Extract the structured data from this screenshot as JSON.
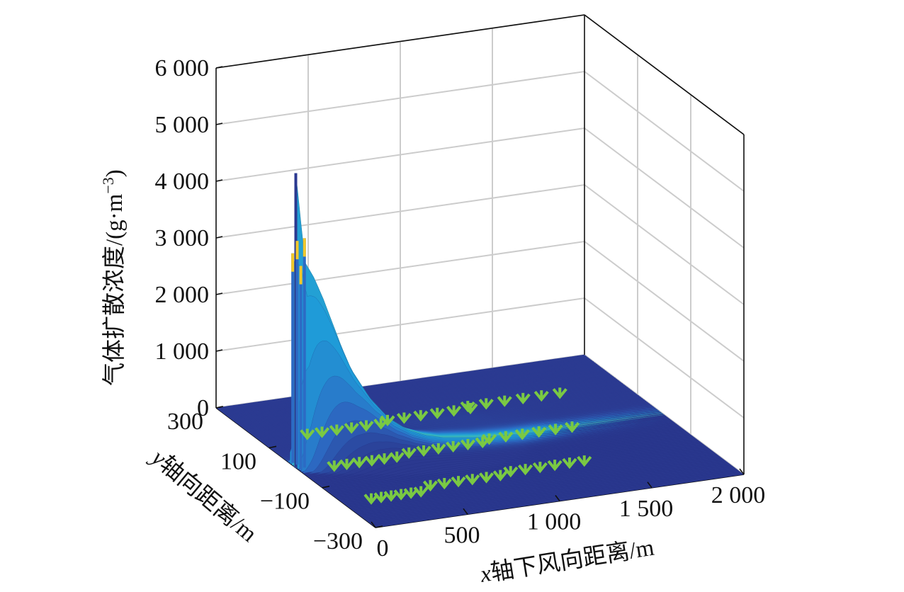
{
  "chart_data": {
    "type": "surface3d",
    "zlabel": "气体扩散浓度/(g·m",
    "zlabel_sup": "−3",
    "zlabel_tail": ")",
    "xlabel_var": "x",
    "xlabel_text": "轴下风向距离/m",
    "ylabel_var": "y",
    "ylabel_text": "轴向距离/m",
    "x_ticks": [
      0,
      500,
      1000,
      1500,
      2000
    ],
    "x_tick_labels": [
      "0",
      "500",
      "1 000",
      "1 500",
      "2 000"
    ],
    "y_ticks": [
      -300,
      -100,
      100,
      300
    ],
    "y_tick_labels": [
      "−300",
      "−100",
      "100",
      "300"
    ],
    "z_ticks": [
      0,
      1000,
      2000,
      3000,
      4000,
      5000,
      6000
    ],
    "z_tick_labels": [
      "0",
      "1 000",
      "2 000",
      "3 000",
      "4 000",
      "5 000",
      "6 000"
    ],
    "xlim": [
      0,
      2000
    ],
    "ylim": [
      -300,
      300
    ],
    "zlim": [
      0,
      6000
    ],
    "grid": true,
    "colormap": "parula",
    "peak": {
      "x": 0,
      "y": 0,
      "value": 5200
    },
    "ridge_profile": {
      "x": [
        0,
        50,
        100,
        150,
        200,
        250,
        300,
        400,
        500,
        600,
        700,
        800,
        1000,
        1200,
        1500,
        2000
      ],
      "value": [
        5200,
        3600,
        3300,
        2900,
        2450,
        2000,
        1600,
        1050,
        650,
        400,
        250,
        160,
        70,
        30,
        10,
        0
      ]
    },
    "colors": {
      "low": "#2b3990",
      "mid": "#1f9cd8",
      "high": "#f2c82a",
      "vegetation_marks": "#7ac943",
      "grid": "#cccccc",
      "axis": "#111111"
    }
  }
}
